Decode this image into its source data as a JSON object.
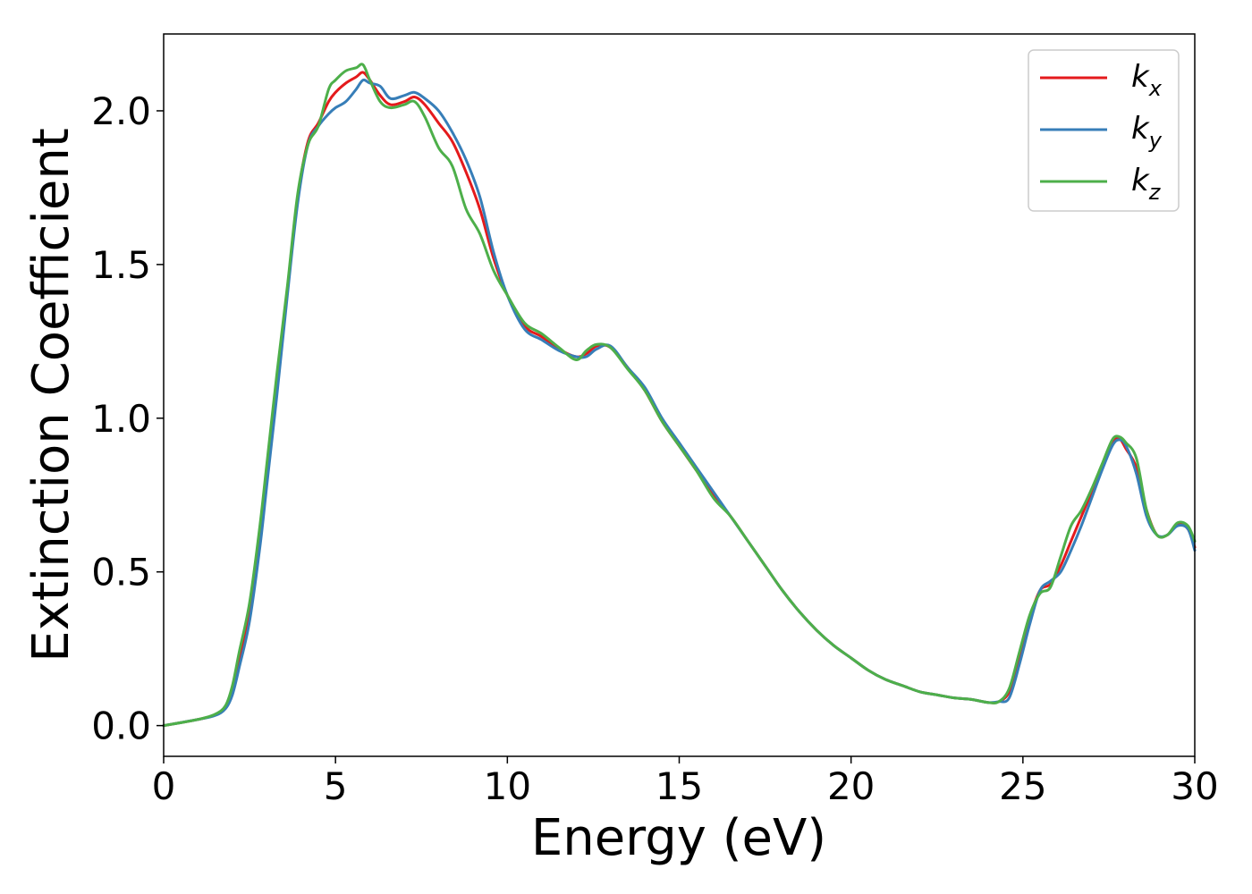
{
  "chart_data": {
    "type": "line",
    "xlabel": "Energy (eV)",
    "ylabel": "Extinction Coefficient",
    "xlim": [
      0,
      30
    ],
    "ylim": [
      -0.1,
      2.25
    ],
    "xticks": [
      0,
      5,
      10,
      15,
      20,
      25,
      30
    ],
    "xtick_labels": [
      "0",
      "5",
      "10",
      "15",
      "20",
      "25",
      "30"
    ],
    "yticks": [
      0.0,
      0.5,
      1.0,
      1.5,
      2.0
    ],
    "ytick_labels": [
      "0.0",
      "0.5",
      "1.0",
      "1.5",
      "2.0"
    ],
    "grid": false,
    "legend_position": "top-right",
    "series": [
      {
        "name": "k",
        "subscript": "x",
        "color": "#e41a1c",
        "x": [
          0,
          1,
          1.5,
          1.8,
          2.0,
          2.2,
          2.5,
          2.8,
          3.0,
          3.3,
          3.6,
          3.9,
          4.2,
          4.5,
          4.8,
          5.0,
          5.3,
          5.6,
          5.8,
          6.0,
          6.3,
          6.6,
          7.0,
          7.3,
          7.6,
          8.0,
          8.4,
          8.8,
          9.2,
          9.6,
          10.0,
          10.5,
          11.0,
          11.5,
          12.0,
          12.3,
          12.6,
          13.0,
          13.5,
          14.0,
          14.5,
          15.0,
          15.5,
          16.0,
          16.5,
          17.0,
          17.5,
          18.0,
          18.5,
          19.0,
          19.5,
          20.0,
          20.5,
          21.0,
          21.5,
          22.0,
          22.5,
          23.0,
          23.5,
          24.0,
          24.3,
          24.6,
          24.9,
          25.2,
          25.5,
          25.8,
          26.1,
          26.4,
          26.7,
          27.0,
          27.3,
          27.6,
          27.8,
          28.0,
          28.3,
          28.6,
          28.9,
          29.2,
          29.5,
          29.8,
          30.0
        ],
        "y": [
          0.0,
          0.02,
          0.035,
          0.06,
          0.12,
          0.22,
          0.38,
          0.62,
          0.82,
          1.12,
          1.42,
          1.72,
          1.9,
          1.96,
          2.03,
          2.06,
          2.09,
          2.11,
          2.125,
          2.1,
          2.05,
          2.02,
          2.03,
          2.045,
          2.02,
          1.96,
          1.9,
          1.8,
          1.68,
          1.52,
          1.4,
          1.3,
          1.265,
          1.225,
          1.2,
          1.21,
          1.235,
          1.23,
          1.165,
          1.09,
          0.99,
          0.91,
          0.83,
          0.75,
          0.68,
          0.6,
          0.52,
          0.44,
          0.37,
          0.31,
          0.26,
          0.22,
          0.18,
          0.15,
          0.13,
          0.11,
          0.1,
          0.09,
          0.085,
          0.075,
          0.078,
          0.11,
          0.22,
          0.35,
          0.44,
          0.46,
          0.52,
          0.6,
          0.68,
          0.76,
          0.84,
          0.92,
          0.935,
          0.9,
          0.84,
          0.7,
          0.62,
          0.62,
          0.655,
          0.64,
          0.58
        ]
      },
      {
        "name": "k",
        "subscript": "y",
        "color": "#377eb8",
        "x": [
          0,
          1,
          1.5,
          1.8,
          2.0,
          2.2,
          2.5,
          2.8,
          3.0,
          3.3,
          3.6,
          3.9,
          4.2,
          4.5,
          4.8,
          5.0,
          5.3,
          5.6,
          5.8,
          6.0,
          6.3,
          6.6,
          7.0,
          7.3,
          7.6,
          8.0,
          8.4,
          8.8,
          9.2,
          9.6,
          10.0,
          10.5,
          11.0,
          11.5,
          12.0,
          12.3,
          12.6,
          13.0,
          13.5,
          14.0,
          14.5,
          15.0,
          15.5,
          16.0,
          16.5,
          17.0,
          17.5,
          18.0,
          18.5,
          19.0,
          19.5,
          20.0,
          20.5,
          21.0,
          21.5,
          22.0,
          22.5,
          23.0,
          23.5,
          24.0,
          24.3,
          24.6,
          24.9,
          25.2,
          25.5,
          25.8,
          26.1,
          26.4,
          26.7,
          27.0,
          27.3,
          27.6,
          27.8,
          28.0,
          28.3,
          28.6,
          28.9,
          29.2,
          29.5,
          29.8,
          30.0
        ],
        "y": [
          0.0,
          0.02,
          0.033,
          0.055,
          0.1,
          0.19,
          0.34,
          0.58,
          0.78,
          1.08,
          1.4,
          1.7,
          1.89,
          1.95,
          1.99,
          2.01,
          2.03,
          2.07,
          2.1,
          2.09,
          2.08,
          2.04,
          2.05,
          2.06,
          2.04,
          2.0,
          1.93,
          1.84,
          1.72,
          1.54,
          1.4,
          1.29,
          1.255,
          1.22,
          1.2,
          1.2,
          1.225,
          1.235,
          1.165,
          1.1,
          1.0,
          0.92,
          0.84,
          0.76,
          0.68,
          0.6,
          0.52,
          0.44,
          0.37,
          0.31,
          0.26,
          0.22,
          0.18,
          0.15,
          0.13,
          0.11,
          0.1,
          0.09,
          0.085,
          0.075,
          0.078,
          0.09,
          0.2,
          0.33,
          0.44,
          0.47,
          0.5,
          0.57,
          0.65,
          0.74,
          0.83,
          0.91,
          0.93,
          0.91,
          0.82,
          0.68,
          0.62,
          0.62,
          0.65,
          0.64,
          0.57
        ]
      },
      {
        "name": "k",
        "subscript": "z",
        "color": "#4daf4a",
        "x": [
          0,
          1,
          1.5,
          1.8,
          2.0,
          2.2,
          2.5,
          2.8,
          3.0,
          3.3,
          3.6,
          3.9,
          4.2,
          4.5,
          4.8,
          5.0,
          5.3,
          5.6,
          5.8,
          6.0,
          6.3,
          6.6,
          7.0,
          7.3,
          7.6,
          8.0,
          8.4,
          8.8,
          9.2,
          9.6,
          10.0,
          10.5,
          11.0,
          11.5,
          12.0,
          12.3,
          12.6,
          13.0,
          13.5,
          14.0,
          14.5,
          15.0,
          15.5,
          16.0,
          16.5,
          17.0,
          17.5,
          18.0,
          18.5,
          19.0,
          19.5,
          20.0,
          20.5,
          21.0,
          21.5,
          22.0,
          22.5,
          23.0,
          23.5,
          24.0,
          24.3,
          24.6,
          24.9,
          25.2,
          25.5,
          25.8,
          26.1,
          26.4,
          26.7,
          27.0,
          27.3,
          27.6,
          27.8,
          28.0,
          28.3,
          28.6,
          28.9,
          29.2,
          29.5,
          29.8,
          30.0
        ],
        "y": [
          0.0,
          0.02,
          0.037,
          0.065,
          0.13,
          0.24,
          0.4,
          0.65,
          0.85,
          1.15,
          1.43,
          1.73,
          1.89,
          1.95,
          2.07,
          2.1,
          2.13,
          2.14,
          2.15,
          2.1,
          2.03,
          2.01,
          2.02,
          2.03,
          1.98,
          1.88,
          1.82,
          1.68,
          1.6,
          1.48,
          1.4,
          1.31,
          1.275,
          1.23,
          1.19,
          1.22,
          1.24,
          1.23,
          1.16,
          1.09,
          0.99,
          0.91,
          0.83,
          0.74,
          0.68,
          0.6,
          0.52,
          0.44,
          0.37,
          0.31,
          0.26,
          0.22,
          0.18,
          0.15,
          0.13,
          0.11,
          0.1,
          0.09,
          0.085,
          0.075,
          0.078,
          0.12,
          0.24,
          0.36,
          0.43,
          0.45,
          0.55,
          0.65,
          0.7,
          0.77,
          0.85,
          0.93,
          0.94,
          0.92,
          0.87,
          0.7,
          0.62,
          0.62,
          0.66,
          0.65,
          0.6
        ]
      }
    ]
  }
}
